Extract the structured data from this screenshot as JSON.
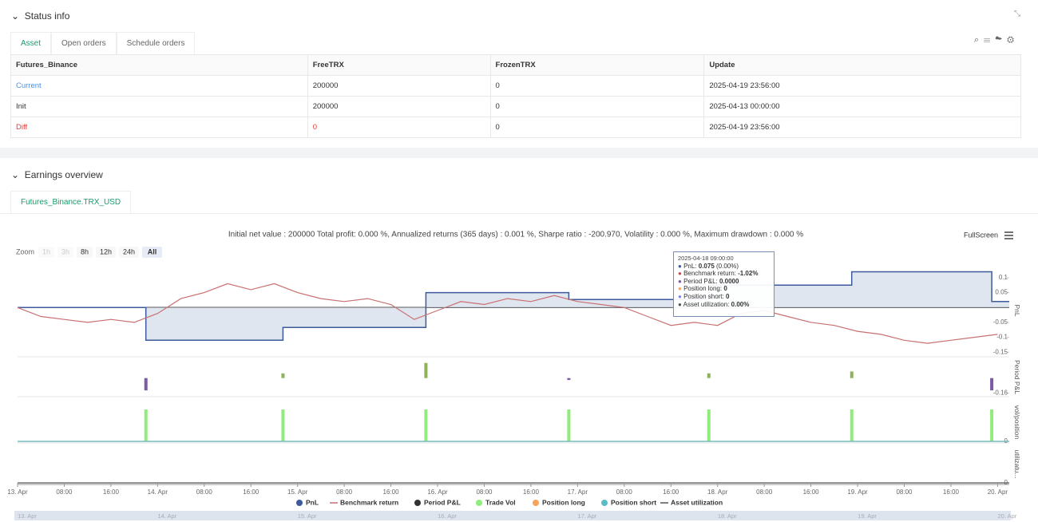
{
  "status_info": {
    "title": "Status info",
    "tabs": [
      "Asset",
      "Open orders",
      "Schedule orders"
    ],
    "table": {
      "columns": [
        "Futures_Binance",
        "FreeTRX",
        "FrozenTRX",
        "Update"
      ],
      "rows": [
        [
          "Current",
          "200000",
          "0",
          "2025-04-19 23:56:00"
        ],
        [
          "Init",
          "200000",
          "0",
          "2025-04-13 00:00:00"
        ],
        [
          "Diff",
          "0",
          "0",
          "2025-04-19 23:56:00"
        ]
      ]
    }
  },
  "earnings_overview": {
    "title": "Earnings overview",
    "tab": "Futures_Binance.TRX_USD",
    "summary": "Initial net value : 200000 Total profit: 0.000 %, Annualized returns (365 days) : 0.001 %, Sharpe ratio : -200.970, Volatility : 0.000 %, Maximum drawdown : 0.000 %",
    "fullscreen": "FullScreen",
    "zoom_label": "Zoom",
    "zoom_buttons": [
      "1h",
      "3h",
      "8h",
      "12h",
      "24h",
      "All"
    ],
    "tooltip": {
      "time": "2025-04-18 09:00:00",
      "items": [
        {
          "label": "PnL: ",
          "value": "0.075",
          "suffix": " (0.00%)",
          "color": "#3d5a9e"
        },
        {
          "label": "Benchmark return: ",
          "value": "-1.02%",
          "color": "#c0504d"
        },
        {
          "label": "Period P&L: ",
          "value": "0.0000",
          "color": "#7b5aa6"
        },
        {
          "label": "Position long: ",
          "value": "0",
          "color": "#f7a35c"
        },
        {
          "label": "Position short: ",
          "value": "0",
          "color": "#8085e9"
        },
        {
          "label": "Asset utilization: ",
          "value": "0.00%",
          "color": "#555555"
        }
      ]
    }
  },
  "chart_data": [
    {
      "type": "line",
      "ylabel": "PnL",
      "ylim": [
        -0.16,
        0.14
      ],
      "yticks": [
        -0.15,
        -0.1,
        -0.05,
        0.05,
        0.1
      ],
      "series": [
        {
          "name": "PnL",
          "type": "area",
          "color": "#3d5a9e",
          "legend_symbol": "circle",
          "x": [
            0,
            22,
            22,
            45.5,
            45.5,
            70,
            70,
            94.5,
            94.5,
            118.5,
            118.5,
            143,
            143,
            167,
            167,
            170
          ],
          "values": [
            0,
            0,
            -0.11,
            -0.11,
            -0.067,
            -0.067,
            0.05,
            0.05,
            0.027,
            0.027,
            0.075,
            0.075,
            0.12,
            0.12,
            0.02,
            0.02
          ]
        },
        {
          "name": "Benchmark return",
          "type": "line",
          "color": "#c97070",
          "legend_symbol": "line",
          "x": [
            0,
            4,
            8,
            12,
            16,
            20,
            24,
            28,
            32,
            36,
            40,
            44,
            48,
            52,
            56,
            60,
            64,
            68,
            72,
            76,
            80,
            84,
            88,
            92,
            96,
            100,
            104,
            108,
            112,
            116,
            120,
            124,
            128,
            132,
            136,
            140,
            144,
            148,
            152,
            156,
            160,
            164,
            168
          ],
          "values": [
            0,
            -0.03,
            -0.04,
            -0.05,
            -0.04,
            -0.05,
            -0.02,
            0.03,
            0.05,
            0.08,
            0.06,
            0.08,
            0.05,
            0.03,
            0.02,
            0.03,
            0.01,
            -0.04,
            -0.01,
            0.02,
            0.01,
            0.03,
            0.02,
            0.04,
            0.02,
            0.01,
            0,
            -0.03,
            -0.06,
            -0.05,
            -0.06,
            -0.02,
            -0.01,
            -0.03,
            -0.05,
            -0.06,
            -0.08,
            -0.09,
            -0.11,
            -0.12,
            -0.11,
            -0.1,
            -0.09
          ]
        }
      ]
    },
    {
      "type": "bar",
      "ylabel": "Period P&L",
      "ylim": [
        -0.18,
        0.2
      ],
      "yticks": [
        -0.16
      ],
      "series": [
        {
          "name": "Period P&L",
          "type": "bar",
          "color": "#333333",
          "up_color": "#8db35a",
          "down_color": "#7b5aa6",
          "legend_symbol": "circle",
          "x": [
            22,
            45.5,
            70,
            94.5,
            118.5,
            143,
            167
          ],
          "values": [
            -0.13,
            0.05,
            0.16,
            -0.02,
            0.05,
            0.07,
            -0.13
          ]
        }
      ]
    },
    {
      "type": "bar",
      "ylabel": "vol/position",
      "ylim": [
        0,
        1.2
      ],
      "yticks": [
        0
      ],
      "series": [
        {
          "name": "Trade Vol",
          "type": "bar",
          "color": "#90ed7d",
          "legend_symbol": "circle",
          "x": [
            22,
            45.5,
            70,
            94.5,
            118.5,
            143,
            167
          ],
          "values": [
            1,
            1,
            1,
            1,
            1,
            1,
            1
          ]
        },
        {
          "name": "Position long",
          "type": "line",
          "color": "#f7a35c",
          "legend_symbol": "circle",
          "x": [
            0,
            170
          ],
          "values": [
            0,
            0
          ]
        },
        {
          "name": "Position short",
          "type": "line",
          "color": "#5bbcc8",
          "legend_symbol": "circle",
          "x": [
            0,
            170
          ],
          "values": [
            0,
            0
          ]
        }
      ]
    },
    {
      "type": "line",
      "ylabel": "utilizatu...",
      "ylim": [
        0,
        1
      ],
      "yticks": [
        0
      ],
      "xlim": [
        0,
        170
      ],
      "xticks": [
        {
          "value": 0,
          "label": "13. Apr"
        },
        {
          "value": 8,
          "label": "08:00"
        },
        {
          "value": 16,
          "label": "16:00"
        },
        {
          "value": 24,
          "label": "14. Apr"
        },
        {
          "value": 32,
          "label": "08:00"
        },
        {
          "value": 40,
          "label": "16:00"
        },
        {
          "value": 48,
          "label": "15. Apr"
        },
        {
          "value": 56,
          "label": "08:00"
        },
        {
          "value": 64,
          "label": "16:00"
        },
        {
          "value": 72,
          "label": "16. Apr"
        },
        {
          "value": 80,
          "label": "08:00"
        },
        {
          "value": 88,
          "label": "16:00"
        },
        {
          "value": 96,
          "label": "17. Apr"
        },
        {
          "value": 104,
          "label": "08:00"
        },
        {
          "value": 112,
          "label": "16:00"
        },
        {
          "value": 120,
          "label": "18. Apr"
        },
        {
          "value": 128,
          "label": "08:00"
        },
        {
          "value": 136,
          "label": "16:00"
        },
        {
          "value": 144,
          "label": "19. Apr"
        },
        {
          "value": 152,
          "label": "08:00"
        },
        {
          "value": 160,
          "label": "16:00"
        },
        {
          "value": 168,
          "label": "20. Apr"
        }
      ],
      "series": [
        {
          "name": "Asset utilization",
          "type": "line",
          "color": "#555555",
          "legend_symbol": "line",
          "x": [
            0,
            170
          ],
          "values": [
            0,
            0
          ]
        }
      ]
    }
  ]
}
